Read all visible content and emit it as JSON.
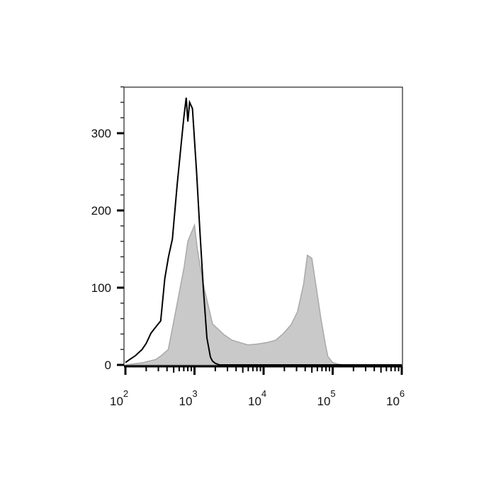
{
  "chart_data": {
    "type": "area",
    "title": "",
    "xlabel": "",
    "ylabel": "",
    "x_scale": "log",
    "xlim": [
      100,
      1000000
    ],
    "ylim": [
      0,
      360
    ],
    "grid": false,
    "x_ticks": [
      {
        "base": "10",
        "exp": "2"
      },
      {
        "base": "10",
        "exp": "3"
      },
      {
        "base": "10",
        "exp": "4"
      },
      {
        "base": "10",
        "exp": "5"
      },
      {
        "base": "10",
        "exp": "6"
      }
    ],
    "x_tick_values": [
      100,
      1000,
      10000,
      100000,
      1000000
    ],
    "y_ticks": [
      "0",
      "100",
      "200",
      "300"
    ],
    "y_tick_values": [
      0,
      100,
      200,
      300
    ],
    "series": [
      {
        "style": "filled",
        "color": "#c9c9c9",
        "stroke": "#a9a9a9",
        "points": [
          [
            100,
            0
          ],
          [
            180,
            3
          ],
          [
            275,
            7
          ],
          [
            330,
            12
          ],
          [
            417,
            20
          ],
          [
            525,
            66
          ],
          [
            708,
            127
          ],
          [
            800,
            160
          ],
          [
            1000,
            181
          ],
          [
            1100,
            150
          ],
          [
            1350,
            103
          ],
          [
            1820,
            53
          ],
          [
            2690,
            39
          ],
          [
            3500,
            32
          ],
          [
            5900,
            26
          ],
          [
            8000,
            27
          ],
          [
            11200,
            29
          ],
          [
            15000,
            32
          ],
          [
            19500,
            41
          ],
          [
            25000,
            52
          ],
          [
            31000,
            69
          ],
          [
            38000,
            105
          ],
          [
            43000,
            142
          ],
          [
            50000,
            138
          ],
          [
            58000,
            100
          ],
          [
            67600,
            60
          ],
          [
            78000,
            28
          ],
          [
            85000,
            11
          ],
          [
            100000,
            3
          ],
          [
            120000,
            1
          ],
          [
            150000,
            0
          ],
          [
            1000000,
            0
          ]
        ]
      },
      {
        "style": "line",
        "color": "#000000",
        "points": [
          [
            100,
            3
          ],
          [
            115,
            7
          ],
          [
            140,
            12
          ],
          [
            174,
            20
          ],
          [
            200,
            28
          ],
          [
            234,
            41
          ],
          [
            280,
            50
          ],
          [
            324,
            57
          ],
          [
            372,
            112
          ],
          [
            420,
            140
          ],
          [
            479,
            163
          ],
          [
            562,
            234
          ],
          [
            661,
            298
          ],
          [
            700,
            320
          ],
          [
            759,
            346
          ],
          [
            800,
            315
          ],
          [
            850,
            340
          ],
          [
            933,
            332
          ],
          [
            1070,
            250
          ],
          [
            1200,
            172
          ],
          [
            1350,
            96
          ],
          [
            1510,
            35
          ],
          [
            1700,
            10
          ],
          [
            1820,
            5
          ],
          [
            2000,
            2
          ],
          [
            2300,
            0
          ],
          [
            1000000,
            0
          ]
        ]
      }
    ]
  }
}
